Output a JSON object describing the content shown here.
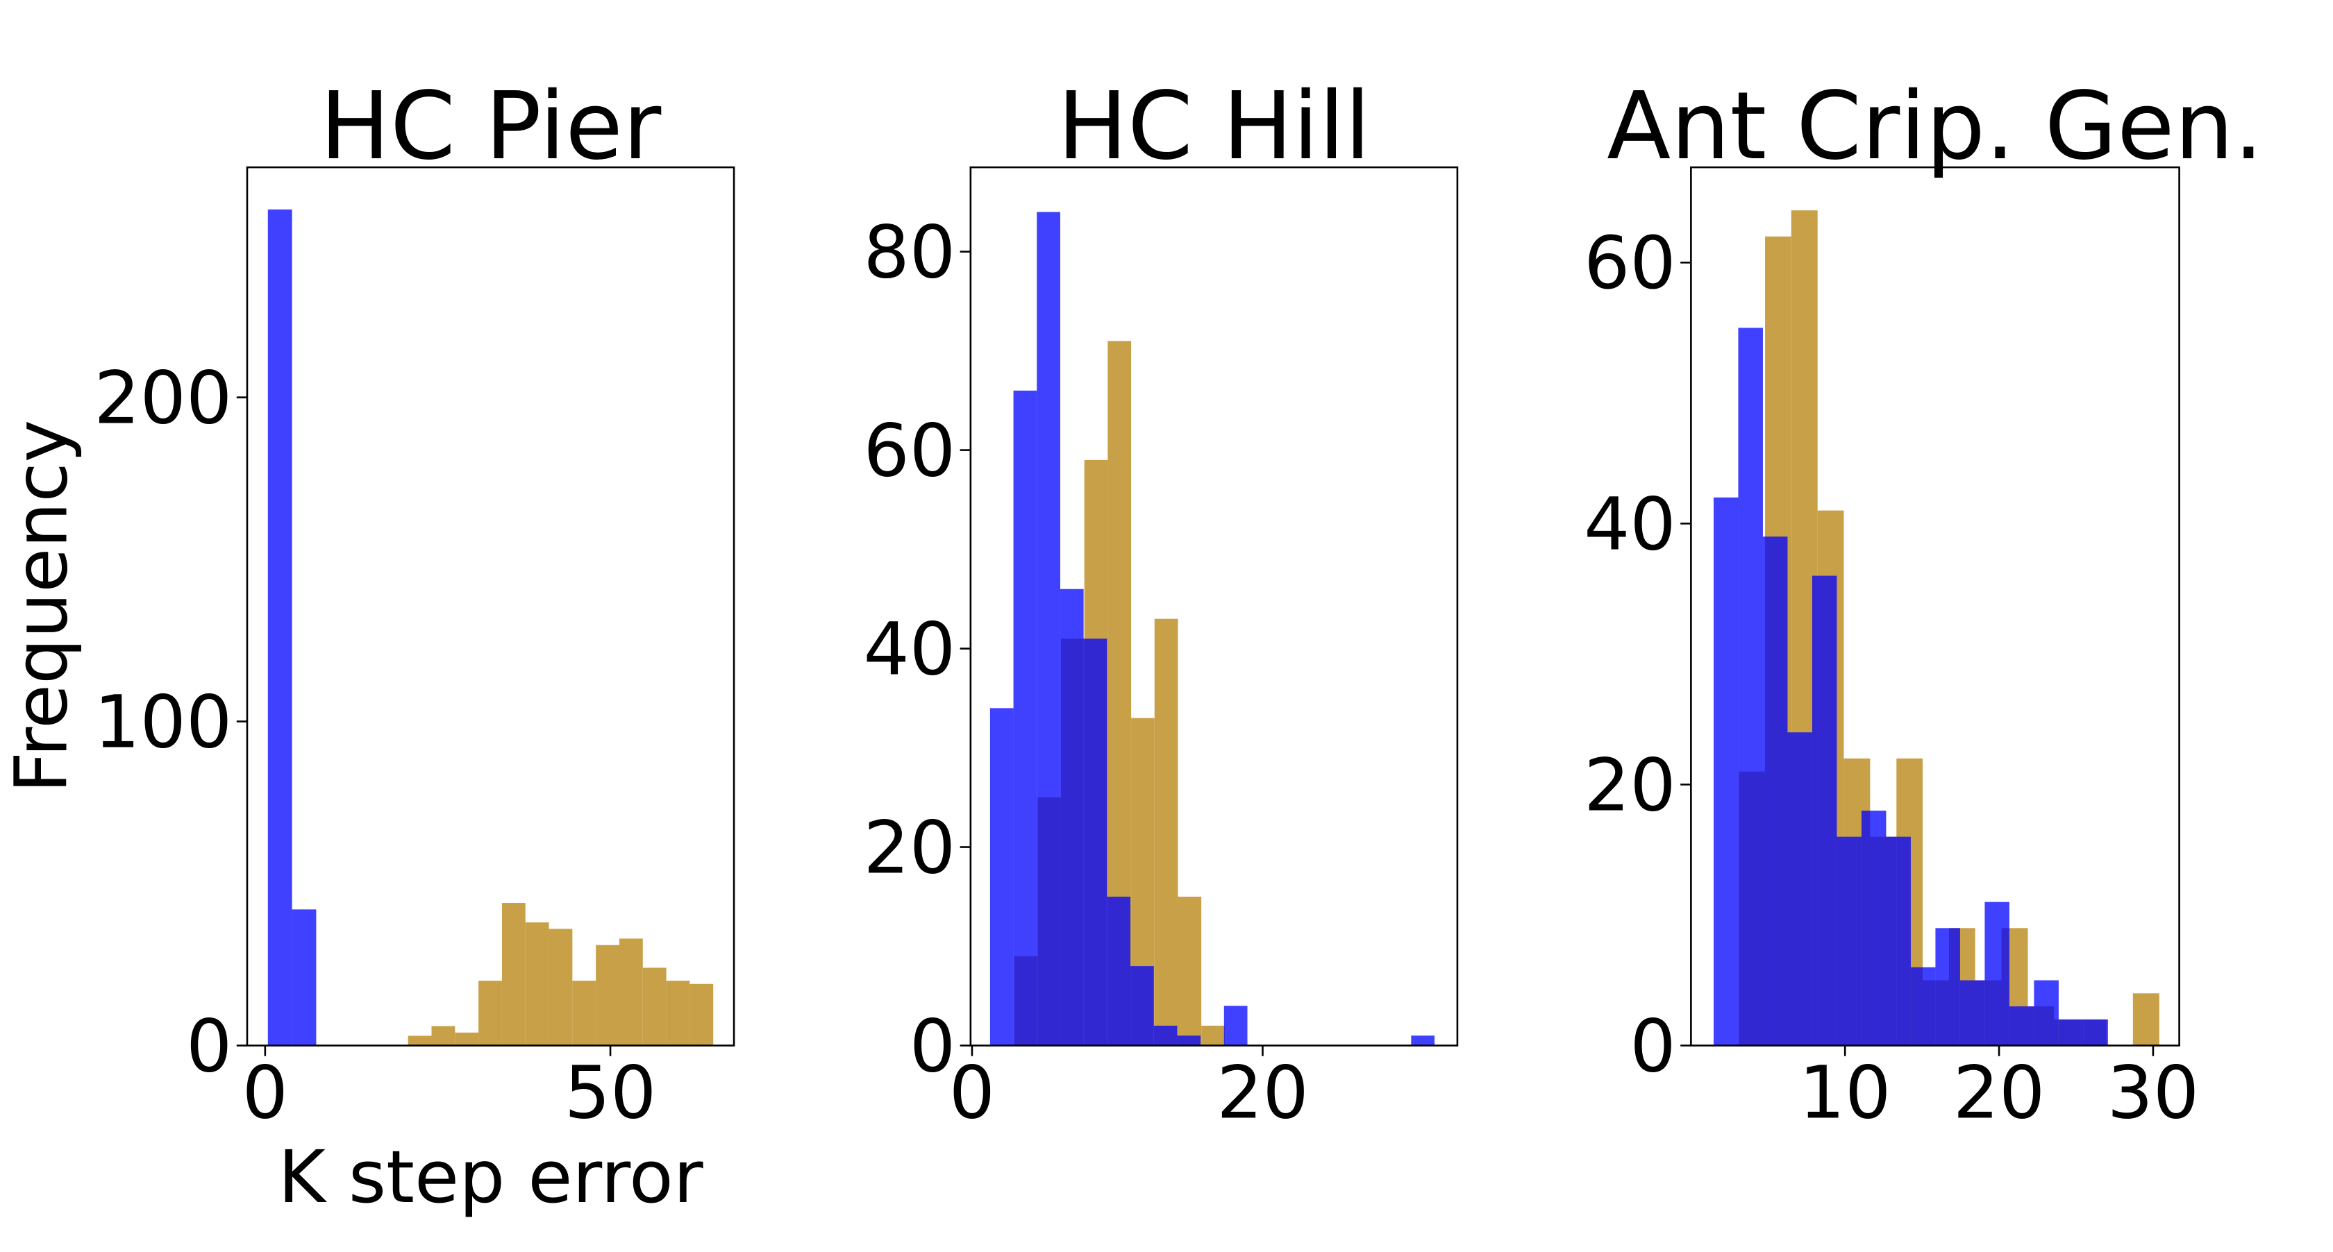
{
  "chart_data": [
    {
      "type": "histogram",
      "title": "HC Pier",
      "xlabel": "K step error",
      "ylabel": "Frequency",
      "xlim": [
        -2.6,
        67.9
      ],
      "ylim": [
        0,
        271
      ],
      "xticks": [
        0,
        50
      ],
      "yticks": [
        0,
        100,
        200
      ],
      "series": [
        {
          "color": "#c8a048",
          "bins": [
            20.7,
            24.1,
            27.5,
            30.9,
            34.3,
            37.7,
            41.1,
            44.5,
            47.9,
            51.3,
            54.7,
            58.1,
            61.5,
            64.9
          ],
          "values": [
            3,
            6,
            4,
            20,
            44,
            38,
            36,
            20,
            31,
            33,
            24,
            20,
            19
          ]
        },
        {
          "color": "#0000ff",
          "bins": [
            0.4,
            3.9,
            7.4
          ],
          "values": [
            258,
            42
          ]
        }
      ]
    },
    {
      "type": "histogram",
      "title": "HC Hill",
      "xlim": [
        -0.1,
        33.4
      ],
      "ylim": [
        0,
        88.5
      ],
      "xticks": [
        0,
        20
      ],
      "yticks": [
        0,
        20,
        40,
        60,
        80
      ],
      "series": [
        {
          "color": "#c8a048",
          "bins": [
            2.9,
            4.51,
            6.12,
            7.73,
            9.34,
            10.95,
            12.56,
            14.17,
            15.78,
            17.39
          ],
          "values": [
            9,
            25,
            41,
            59,
            71,
            33,
            43,
            15,
            2
          ]
        },
        {
          "color": "#0000ff",
          "bins": [
            1.24,
            2.85,
            4.46,
            6.07,
            7.68,
            9.29,
            10.9,
            12.51,
            14.12,
            15.73,
            17.34,
            18.95,
            20.56,
            22.17,
            23.78,
            25.39,
            27.0,
            28.61,
            30.22,
            31.83
          ],
          "values": [
            34,
            66,
            84,
            46,
            41,
            15,
            8,
            2,
            1,
            0,
            4,
            0,
            0,
            0,
            0,
            0,
            0,
            0,
            1
          ]
        }
      ]
    },
    {
      "type": "histogram",
      "title": "Ant Crip. Gen.",
      "xlim": [
        0,
        31.7
      ],
      "ylim": [
        0,
        67.3
      ],
      "xticks": [
        10,
        20,
        30
      ],
      "yticks": [
        0,
        20,
        40,
        60
      ],
      "series": [
        {
          "color": "#c8a048",
          "bins": [
            3.1,
            4.81,
            6.51,
            8.22,
            9.92,
            11.63,
            13.34,
            15.04,
            16.75,
            18.45,
            20.16,
            21.87,
            23.57,
            25.28,
            26.98,
            28.69,
            30.4
          ],
          "values": [
            21,
            62,
            64,
            41,
            22,
            16,
            22,
            5,
            9,
            5,
            9,
            3,
            2,
            2,
            0,
            4
          ]
        },
        {
          "color": "#0000ff",
          "bins": [
            1.47,
            3.07,
            4.67,
            6.27,
            7.87,
            9.47,
            11.07,
            12.67,
            14.27,
            15.87,
            17.47,
            19.07,
            20.67,
            22.27,
            23.87,
            25.47,
            27.07
          ],
          "values": [
            42,
            55,
            39,
            24,
            36,
            16,
            18,
            16,
            6,
            9,
            5,
            11,
            3,
            5,
            2,
            2
          ]
        }
      ]
    }
  ]
}
